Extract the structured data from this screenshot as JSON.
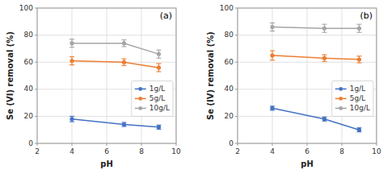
{
  "chart_data": [
    {
      "type": "line",
      "title": "(a)",
      "x_label": "pH",
      "y_label": "Se (VI) removal (%)",
      "x": [
        4,
        7,
        9
      ],
      "xlim": [
        2,
        10
      ],
      "ylim": [
        0,
        100
      ],
      "xticks": [
        2,
        4,
        6,
        8,
        10
      ],
      "yticks": [
        0,
        20,
        40,
        60,
        80,
        100
      ],
      "grid": true,
      "legend": "right",
      "marker": "circle",
      "series": [
        {
          "name": "1g/L",
          "color": "#4472C4",
          "values": [
            18,
            14,
            12
          ],
          "errors": [
            2.0,
            1.5,
            1.5
          ]
        },
        {
          "name": "5g/L",
          "color": "#ED7D31",
          "values": [
            61,
            60,
            56
          ],
          "errors": [
            3.0,
            2.5,
            3.0
          ]
        },
        {
          "name": "10g/L",
          "color": "#A5A5A5",
          "values": [
            74,
            74,
            66
          ],
          "errors": [
            3.0,
            2.5,
            3.0
          ]
        }
      ]
    },
    {
      "type": "line",
      "title": "(b)",
      "x_label": "pH",
      "y_label": "Se (IV) removal (%)",
      "x": [
        4,
        7,
        9
      ],
      "xlim": [
        2,
        10
      ],
      "ylim": [
        0,
        100
      ],
      "xticks": [
        2,
        4,
        6,
        8,
        10
      ],
      "yticks": [
        0,
        20,
        40,
        60,
        80,
        100
      ],
      "grid": true,
      "legend": "right",
      "marker": "circle",
      "series": [
        {
          "name": "1g/L",
          "color": "#4472C4",
          "values": [
            26,
            18,
            10
          ],
          "errors": [
            1.5,
            1.5,
            1.5
          ]
        },
        {
          "name": "5g/L",
          "color": "#ED7D31",
          "values": [
            65,
            63,
            62
          ],
          "errors": [
            3.5,
            2.5,
            2.5
          ]
        },
        {
          "name": "10g/L",
          "color": "#A5A5A5",
          "values": [
            86,
            85,
            85
          ],
          "errors": [
            3.0,
            3.0,
            3.0
          ]
        }
      ]
    }
  ]
}
